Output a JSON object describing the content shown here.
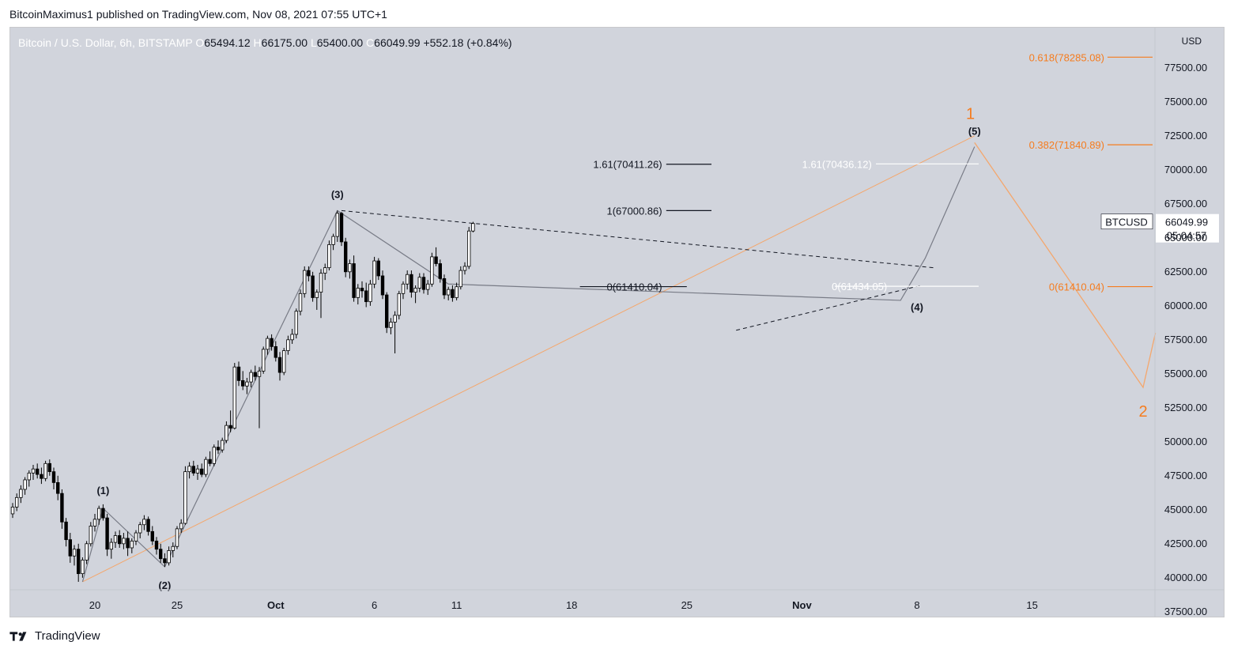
{
  "header": {
    "publisher_line": "BitcoinMaximus1 published on TradingView.com, Nov 08, 2021 07:55 UTC+1"
  },
  "legend": {
    "symbol_desc": "Bitcoin / U.S. Dollar, 6h, BITSTAMP",
    "o_label": "O",
    "o_value": "65494.12",
    "h_label": "H",
    "h_value": "66175.00",
    "l_label": "L",
    "l_value": "65400.00",
    "c_label": "C",
    "c_value": "66049.99",
    "change": "+552.18 (+0.84%)"
  },
  "price_box": {
    "symbol": "BTCUSD",
    "price": "66049.99",
    "countdown": "05:04:57"
  },
  "footer": {
    "brand": "TradingView"
  },
  "colors": {
    "up": "#ffffff",
    "down": "#000000",
    "accent_orange": "#f57c1f",
    "grid_bg": "#d1d4dc"
  },
  "chart_data": {
    "type": "candlestick",
    "title": "Bitcoin / U.S. Dollar, 6h, BITSTAMP",
    "ylabel": "USD",
    "ylim": [
      37000,
      79000
    ],
    "y_ticks": [
      "77500.00",
      "75000.00",
      "72500.00",
      "70000.00",
      "67500.00",
      "65000.00",
      "62500.00",
      "60000.00",
      "57500.00",
      "55000.00",
      "52500.00",
      "50000.00",
      "47500.00",
      "45000.00",
      "42500.00",
      "40000.00",
      "37500.00"
    ],
    "y_unit_label": "USD",
    "y_tick_values": [
      77500,
      75000,
      72500,
      70000,
      67500,
      65000,
      62500,
      60000,
      57500,
      55000,
      52500,
      50000,
      47500,
      45000,
      42500,
      40000,
      37500
    ],
    "x_ticks": [
      {
        "label": "20",
        "bar": 20
      },
      {
        "label": "25",
        "bar": 40
      },
      {
        "label": "Oct",
        "bar": 64
      },
      {
        "label": "6",
        "bar": 88
      },
      {
        "label": "11",
        "bar": 108
      },
      {
        "label": "18",
        "bar": 136
      },
      {
        "label": "25",
        "bar": 164
      },
      {
        "label": "Nov",
        "bar": 192
      },
      {
        "label": "8",
        "bar": 220
      },
      {
        "label": "15",
        "bar": 248
      }
    ],
    "candles": [
      [
        44700,
        45500,
        44400,
        45200
      ],
      [
        45200,
        46200,
        44900,
        45900
      ],
      [
        45900,
        46800,
        45500,
        46500
      ],
      [
        46500,
        47400,
        46100,
        47200
      ],
      [
        47200,
        47900,
        46700,
        47700
      ],
      [
        47700,
        48300,
        47200,
        48000
      ],
      [
        48000,
        48400,
        47300,
        47600
      ],
      [
        47600,
        48100,
        46900,
        47300
      ],
      [
        47300,
        48600,
        47100,
        48400
      ],
      [
        48400,
        48700,
        47500,
        47800
      ],
      [
        47800,
        48100,
        46500,
        47000
      ],
      [
        47000,
        47500,
        45700,
        46200
      ],
      [
        46200,
        46500,
        43600,
        44100
      ],
      [
        44100,
        44400,
        42300,
        42800
      ],
      [
        42800,
        43300,
        41100,
        41600
      ],
      [
        41600,
        42400,
        40900,
        42100
      ],
      [
        42100,
        42500,
        39700,
        40300
      ],
      [
        40300,
        41500,
        40000,
        41300
      ],
      [
        41300,
        42700,
        41000,
        42500
      ],
      [
        42500,
        44100,
        42300,
        43800
      ],
      [
        43800,
        44700,
        43400,
        44300
      ],
      [
        44300,
        45300,
        43900,
        45100
      ],
      [
        45100,
        45400,
        44200,
        44400
      ],
      [
        44400,
        44700,
        41600,
        42100
      ],
      [
        42100,
        42900,
        41400,
        42600
      ],
      [
        42600,
        43400,
        42200,
        43100
      ],
      [
        43100,
        43500,
        42200,
        42500
      ],
      [
        42500,
        43300,
        42100,
        42900
      ],
      [
        42900,
        43400,
        41600,
        42200
      ],
      [
        42200,
        42900,
        41800,
        42700
      ],
      [
        42700,
        43500,
        42400,
        43300
      ],
      [
        43300,
        44100,
        42900,
        43900
      ],
      [
        43900,
        44600,
        43500,
        44300
      ],
      [
        44300,
        44500,
        43100,
        43400
      ],
      [
        43400,
        43800,
        42400,
        42700
      ],
      [
        42700,
        43000,
        41700,
        42100
      ],
      [
        42100,
        42500,
        41100,
        41400
      ],
      [
        41400,
        41800,
        40800,
        41100
      ],
      [
        41100,
        42300,
        40900,
        42000
      ],
      [
        42000,
        42600,
        41500,
        42300
      ],
      [
        42300,
        43800,
        42100,
        43600
      ],
      [
        43600,
        44300,
        43300,
        44000
      ],
      [
        44000,
        48200,
        43900,
        47800
      ],
      [
        47800,
        48500,
        47300,
        48200
      ],
      [
        48200,
        48600,
        47500,
        47700
      ],
      [
        47700,
        48300,
        47200,
        48000
      ],
      [
        48000,
        48400,
        47400,
        47600
      ],
      [
        47600,
        48900,
        47400,
        48700
      ],
      [
        48700,
        49300,
        48200,
        48400
      ],
      [
        48400,
        49800,
        48200,
        49600
      ],
      [
        49600,
        50100,
        49100,
        49400
      ],
      [
        49400,
        50300,
        49200,
        50100
      ],
      [
        50100,
        51500,
        49900,
        51200
      ],
      [
        51200,
        52300,
        50700,
        51000
      ],
      [
        51000,
        55800,
        50900,
        55500
      ],
      [
        55500,
        55900,
        54100,
        54500
      ],
      [
        54500,
        55200,
        53800,
        54100
      ],
      [
        54100,
        54700,
        53500,
        54400
      ],
      [
        54400,
        55300,
        54000,
        55100
      ],
      [
        55100,
        55600,
        54500,
        54800
      ],
      [
        54800,
        55500,
        51000,
        55200
      ],
      [
        55200,
        57000,
        55000,
        56800
      ],
      [
        56800,
        57800,
        56400,
        57600
      ],
      [
        57600,
        57900,
        56700,
        57000
      ],
      [
        57000,
        57400,
        55900,
        56200
      ],
      [
        56200,
        56600,
        54500,
        55100
      ],
      [
        55100,
        56900,
        54900,
        56700
      ],
      [
        56700,
        57800,
        56400,
        57500
      ],
      [
        57500,
        58300,
        57200,
        57900
      ],
      [
        57900,
        59800,
        57600,
        59600
      ],
      [
        59600,
        61200,
        59300,
        60900
      ],
      [
        60900,
        62900,
        60600,
        62600
      ],
      [
        62600,
        62900,
        61800,
        62200
      ],
      [
        62200,
        62500,
        60300,
        60600
      ],
      [
        60600,
        61200,
        59700,
        61000
      ],
      [
        61000,
        62700,
        59100,
        62400
      ],
      [
        62400,
        63100,
        61900,
        62800
      ],
      [
        62800,
        64800,
        62600,
        64500
      ],
      [
        64500,
        65300,
        64100,
        65100
      ],
      [
        65100,
        67000,
        64700,
        66800
      ],
      [
        66800,
        66900,
        64400,
        64700
      ],
      [
        64700,
        65000,
        62100,
        62500
      ],
      [
        62500,
        63400,
        62000,
        63100
      ],
      [
        63100,
        63700,
        60300,
        60600
      ],
      [
        60600,
        61600,
        60100,
        61300
      ],
      [
        61300,
        61800,
        60600,
        61100
      ],
      [
        61100,
        61700,
        59900,
        60300
      ],
      [
        60300,
        61900,
        60000,
        61600
      ],
      [
        61600,
        63600,
        61300,
        63300
      ],
      [
        63300,
        63500,
        61900,
        62200
      ],
      [
        62200,
        62600,
        60500,
        60800
      ],
      [
        60800,
        61000,
        58000,
        58400
      ],
      [
        58400,
        59100,
        57900,
        58800
      ],
      [
        58800,
        59600,
        56500,
        59300
      ],
      [
        59300,
        61100,
        59000,
        60900
      ],
      [
        60900,
        61800,
        60500,
        61600
      ],
      [
        61600,
        62600,
        61200,
        62300
      ],
      [
        62300,
        62600,
        60600,
        61000
      ],
      [
        61000,
        61500,
        60200,
        61300
      ],
      [
        61300,
        62400,
        61000,
        62100
      ],
      [
        62100,
        62400,
        60900,
        61200
      ],
      [
        61200,
        61900,
        60800,
        61600
      ],
      [
        61600,
        63900,
        61400,
        63600
      ],
      [
        63600,
        64300,
        62900,
        63100
      ],
      [
        63100,
        63400,
        61700,
        62000
      ],
      [
        62000,
        62300,
        60500,
        60800
      ],
      [
        60800,
        61400,
        60400,
        61200
      ],
      [
        61200,
        61500,
        60300,
        60600
      ],
      [
        60600,
        61700,
        60400,
        61400
      ],
      [
        61400,
        62900,
        61200,
        62600
      ],
      [
        62600,
        63200,
        62300,
        62900
      ],
      [
        62900,
        65800,
        62700,
        65500
      ],
      [
        65500,
        66175,
        65400,
        66049.99
      ]
    ],
    "annotations": {
      "black_waves": [
        {
          "label": "(1)"
        },
        {
          "label": "(2)"
        },
        {
          "label": "(3)"
        },
        {
          "label": "(4)"
        },
        {
          "label": "(5)"
        }
      ],
      "orange_waves": [
        {
          "label": "1"
        },
        {
          "label": "2"
        }
      ],
      "fib_levels": [
        {
          "label": "1.61(70411.26)",
          "value": 70411.26,
          "color": "black"
        },
        {
          "label": "1(67000.86)",
          "value": 67000.86,
          "color": "black"
        },
        {
          "label": "0(61410.04)",
          "value": 61410.04,
          "color": "black"
        },
        {
          "label": "1.61(70436.12)",
          "value": 70436.12,
          "color": "white"
        },
        {
          "label": "0(61434.05)",
          "value": 61434.05,
          "color": "white"
        },
        {
          "label": "0.618(78285.08)",
          "value": 78285.08,
          "color": "orange"
        },
        {
          "label": "0.382(71840.89)",
          "value": 71840.89,
          "color": "orange"
        },
        {
          "label": "0(61410.04)",
          "value": 61410.04,
          "color": "orange"
        }
      ]
    }
  }
}
